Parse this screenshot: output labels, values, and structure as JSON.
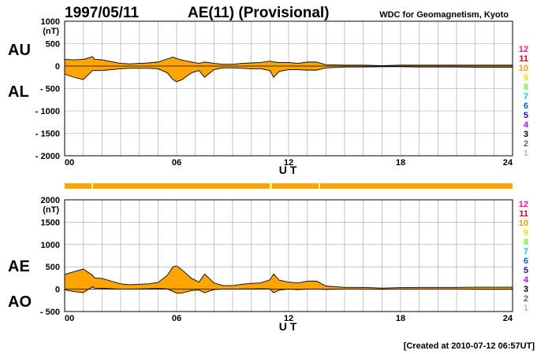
{
  "header": {
    "date": "1997/05/11",
    "title": "AE(11) (Provisional)",
    "source": "WDC for Geomagnetism, Kyoto"
  },
  "footer": {
    "created": "[Created at 2010-07-12 06:57UT]"
  },
  "colors": {
    "fill": "#ffa500",
    "line": "#000000",
    "grid": "#a0a0a0",
    "bar": "#ffa500",
    "bar_gaps": "#ffff66"
  },
  "hour_legend": {
    "labels": [
      "12",
      "11",
      "10",
      "9",
      "8",
      "7",
      "6",
      "5",
      "4",
      "3",
      "2",
      "1"
    ],
    "colors": [
      "#ff1493",
      "#e0001b",
      "#ff9900",
      "#e6e600",
      "#66ff33",
      "#00ccff",
      "#0066ff",
      "#3300cc",
      "#cc00ff",
      "#000000",
      "#666666",
      "#bbbbbb"
    ]
  },
  "chart_data": [
    {
      "type": "area",
      "panel": "AU/AL",
      "labels_left": [
        "AU",
        "AL"
      ],
      "unit": "(nT)",
      "xlabel": "U T",
      "x_ticks": [
        "00",
        "06",
        "12",
        "18",
        "24"
      ],
      "y_ticks": [
        "1000",
        "500",
        "0",
        "- 500",
        "- 1000",
        "- 1500",
        "- 2000"
      ],
      "ylim": [
        -2000,
        1000
      ],
      "x_hours": [
        0,
        0.5,
        1,
        1.5,
        1.6,
        2,
        2.5,
        3,
        3.5,
        4,
        4.5,
        5,
        5.5,
        5.8,
        6,
        6.3,
        6.8,
        7.2,
        7.5,
        7.7,
        8,
        8.5,
        9,
        9.5,
        10,
        10.5,
        11,
        11.2,
        11.5,
        12,
        12.5,
        13,
        13.5,
        14,
        15,
        16,
        17,
        18,
        19,
        20,
        21,
        22,
        23,
        24
      ],
      "series": [
        {
          "values": [
            150,
            140,
            150,
            210,
            150,
            140,
            100,
            60,
            50,
            60,
            70,
            90,
            160,
            200,
            170,
            130,
            90,
            60,
            90,
            80,
            60,
            40,
            40,
            60,
            70,
            80,
            110,
            90,
            80,
            80,
            60,
            90,
            90,
            30,
            20,
            20,
            10,
            20,
            20,
            20,
            20,
            20,
            20,
            20
          ]
        },
        {
          "values": [
            -180,
            -250,
            -300,
            -100,
            -100,
            -100,
            -80,
            -60,
            -50,
            -50,
            -50,
            -60,
            -150,
            -300,
            -350,
            -300,
            -150,
            -100,
            -250,
            -180,
            -80,
            -40,
            -40,
            -50,
            -60,
            -60,
            -100,
            -250,
            -120,
            -80,
            -80,
            -90,
            -90,
            -40,
            -20,
            -20,
            -15,
            -15,
            -20,
            -20,
            -20,
            -25,
            -25,
            -25
          ]
        }
      ]
    },
    {
      "type": "area",
      "panel": "AE/AO",
      "labels_left": [
        "AE",
        "AO"
      ],
      "unit": "(nT)",
      "xlabel": "U T",
      "x_ticks": [
        "00",
        "06",
        "12",
        "18",
        "24"
      ],
      "y_ticks": [
        "2000",
        "1500",
        "1000",
        "500",
        "0",
        "- 500"
      ],
      "ylim": [
        -500,
        2000
      ],
      "x_hours": [
        0,
        0.5,
        1,
        1.5,
        1.6,
        2,
        2.5,
        3,
        3.5,
        4,
        4.5,
        5,
        5.5,
        5.8,
        6,
        6.3,
        6.8,
        7.2,
        7.5,
        7.7,
        8,
        8.5,
        9,
        9.5,
        10,
        10.5,
        11,
        11.2,
        11.5,
        12,
        12.5,
        13,
        13.5,
        14,
        15,
        16,
        17,
        18,
        19,
        20,
        21,
        22,
        23,
        24
      ],
      "series": [
        {
          "values": [
            330,
            390,
            450,
            310,
            250,
            240,
            180,
            120,
            100,
            110,
            120,
            150,
            310,
            500,
            520,
            430,
            240,
            160,
            340,
            260,
            140,
            80,
            80,
            110,
            130,
            140,
            210,
            340,
            200,
            160,
            140,
            180,
            180,
            70,
            40,
            40,
            25,
            35,
            40,
            40,
            40,
            45,
            45,
            45
          ]
        },
        {
          "values": [
            -15,
            -55,
            -75,
            55,
            25,
            20,
            10,
            0,
            0,
            5,
            10,
            15,
            5,
            -50,
            -90,
            -85,
            -30,
            -20,
            -80,
            -50,
            -10,
            0,
            0,
            5,
            5,
            10,
            5,
            -80,
            -20,
            0,
            -10,
            0,
            0,
            -5,
            0,
            0,
            -3,
            3,
            0,
            0,
            0,
            -3,
            -3,
            -3
          ]
        }
      ]
    }
  ]
}
